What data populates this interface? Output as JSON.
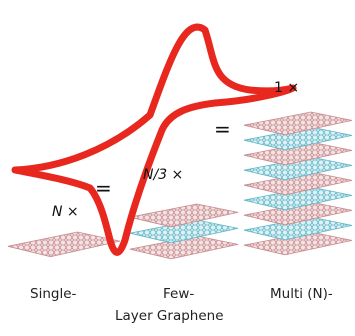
{
  "labels": {
    "single_multiplier": "N ×",
    "few_multiplier": "N/3 ×",
    "multi_multiplier": "1 ×",
    "equals": "="
  },
  "captions": {
    "single": "Single-",
    "few": "Few-",
    "multi": "Multi (N)-",
    "bottom": "Layer Graphene"
  },
  "colors": {
    "curve": "#e8281e",
    "graphene_pink": "#c98a8e",
    "graphene_blue": "#5fb8c8"
  },
  "sheets": {
    "few": [
      "pink",
      "blue",
      "pink"
    ],
    "multi": [
      "pink",
      "blue",
      "pink",
      "blue",
      "pink",
      "blue",
      "pink",
      "blue",
      "pink"
    ]
  }
}
